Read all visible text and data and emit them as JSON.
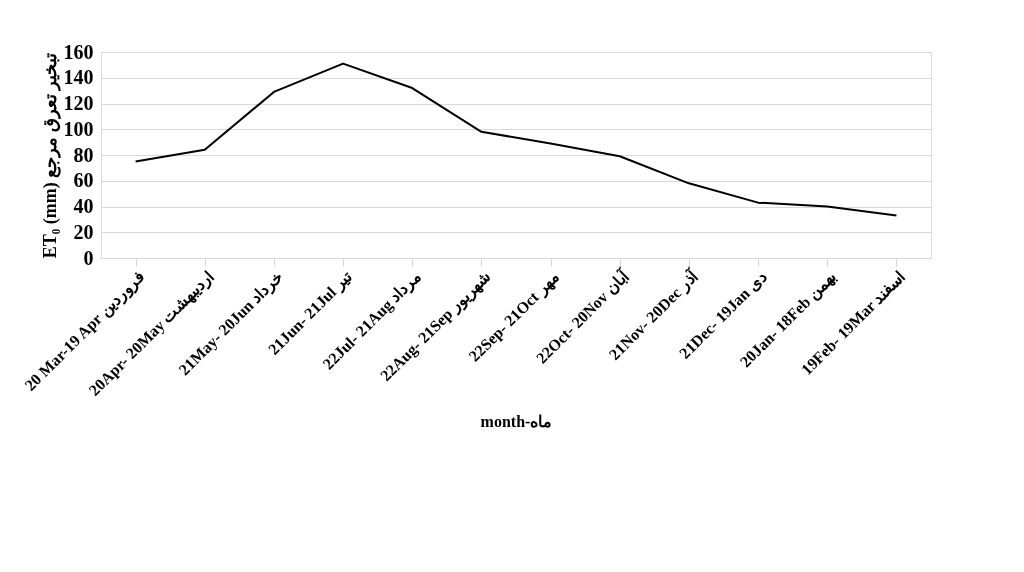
{
  "chart_data": {
    "type": "line",
    "xlabel": "month-ماه",
    "ylabel": "ET₀ (mm) تبخیر تعرق مرجع",
    "categories": [
      "20 Mar-19 Apr فروردین",
      "20Apr- 20May  اردیبهشت",
      "21May- 20Jun  خرداد",
      "21Jun- 21Jul  تیر",
      "22Jul- 21Aug  مرداد",
      "22Aug- 21Sep شهریور",
      "22Sep- 21Oct  مهر",
      "22Oct- 20Nov آبان",
      "21Nov- 20Dec  آذر",
      "21Dec- 19Jan  دی",
      "20Jan- 18Feb  بهمن",
      "19Feb- 19Mar  اسفند"
    ],
    "series": [
      {
        "color": "#000000",
        "values": [
          75,
          84,
          129,
          151,
          132,
          98,
          89,
          79,
          58,
          43,
          40,
          33
        ]
      }
    ],
    "ylim": [
      0,
      160
    ],
    "yticks": [
      0,
      20,
      40,
      60,
      80,
      100,
      120,
      140,
      160
    ],
    "grid": "y",
    "marker": "none",
    "line_style": "solid"
  }
}
